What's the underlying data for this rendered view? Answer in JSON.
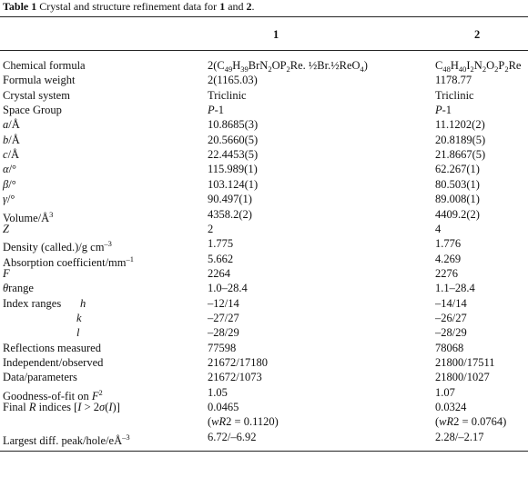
{
  "title": [
    "Table 1",
    {
      "text": " Crystal and structure refinement data for "
    },
    "1",
    {
      "text": " and "
    },
    "2",
    {
      "text": "."
    }
  ],
  "title_styles": [
    "b",
    null,
    "b",
    null,
    "b",
    null
  ],
  "header": [
    "1",
    "2"
  ],
  "rows": [
    {
      "label": "Chemical formula",
      "c1": [
        "2(C",
        {
          "text": "49",
          "style": "sub"
        },
        "H",
        {
          "text": "39",
          "style": "sub"
        },
        "BrN",
        {
          "text": "2",
          "style": "sub"
        },
        "OP",
        {
          "text": "2",
          "style": "sub"
        },
        "Re. ½Br.½ReO",
        {
          "text": "4",
          "style": "sub"
        },
        ")"
      ],
      "c2": [
        "C",
        {
          "text": "48",
          "style": "sub"
        },
        "H",
        {
          "text": "40",
          "style": "sub"
        },
        "I",
        {
          "text": "2",
          "style": "sub"
        },
        "N",
        {
          "text": "2",
          "style": "sub"
        },
        "O",
        {
          "text": "2",
          "style": "sub"
        },
        "P",
        {
          "text": "2",
          "style": "sub"
        },
        "Re"
      ]
    },
    {
      "label": "Formula weight",
      "c1": "2(1165.03)",
      "c2": "1178.77"
    },
    {
      "label": "Crystal system",
      "c1": "Triclinic",
      "c2": "Triclinic"
    },
    {
      "label": "Space Group",
      "c1": [
        {
          "text": "P",
          "style": "i"
        },
        "-1"
      ],
      "c2": [
        {
          "text": "P",
          "style": "i"
        },
        "-1"
      ]
    },
    {
      "label": [
        {
          "text": "a",
          "style": "i"
        },
        "/Å"
      ],
      "c1": "10.8685(3)",
      "c2": "11.1202(2)"
    },
    {
      "label": [
        {
          "text": "b",
          "style": "i"
        },
        "/Å"
      ],
      "c1": "20.5660(5)",
      "c2": "20.8189(5)"
    },
    {
      "label": [
        {
          "text": "c",
          "style": "i"
        },
        "/Å"
      ],
      "c1": "22.4453(5)",
      "c2": "21.8667(5)"
    },
    {
      "label": [
        {
          "text": "α",
          "style": "i"
        },
        "/°"
      ],
      "c1": "115.989(1)",
      "c2": "62.267(1)"
    },
    {
      "label": [
        {
          "text": "β",
          "style": "i"
        },
        "/°"
      ],
      "c1": "103.124(1)",
      "c2": "80.503(1)"
    },
    {
      "label": [
        {
          "text": "γ",
          "style": "i"
        },
        "/°"
      ],
      "c1": "90.497(1)",
      "c2": "89.008(1)"
    },
    {
      "label": [
        "Volume/Å",
        {
          "text": "3",
          "style": "sup"
        }
      ],
      "c1": "4358.2(2)",
      "c2": "4409.2(2)"
    },
    {
      "label": [
        {
          "text": "Z",
          "style": "i"
        }
      ],
      "c1": "2",
      "c2": "4"
    },
    {
      "label": [
        "Density (called.)/g cm",
        {
          "text": "–3",
          "style": "sup"
        }
      ],
      "c1": "1.775",
      "c2": "1.776"
    },
    {
      "label": [
        "Absorption coefficient/mm",
        {
          "text": "–1",
          "style": "sup"
        }
      ],
      "c1": "5.662",
      "c2": "4.269"
    },
    {
      "label": [
        {
          "text": "F",
          "style": "i"
        }
      ],
      "c1": "2264",
      "c2": "2276"
    },
    {
      "label": [
        {
          "text": "θ",
          "style": "i"
        },
        "range"
      ],
      "c1": "1.0–28.4",
      "c2": "1.1–28.4"
    },
    {
      "label": "Index ranges",
      "index": "h",
      "c1": "–12/14",
      "c2": "–14/14"
    },
    {
      "label": null,
      "index": "k",
      "c1": "–27/27",
      "c2": "–26/27"
    },
    {
      "label": null,
      "index": "l",
      "c1": "–28/29",
      "c2": "–28/29"
    },
    {
      "label": "Reflections measured",
      "c1": "77598",
      "c2": "78068"
    },
    {
      "label": "Independent/observed",
      "c1": "21672/17180",
      "c2": "21800/17511"
    },
    {
      "label": "Data/parameters",
      "c1": "21672/1073",
      "c2": "21800/1027"
    },
    {
      "label": [
        "Goodness-of-fit on ",
        {
          "text": "F",
          "style": "i"
        },
        {
          "text": "2",
          "style": "sup"
        }
      ],
      "c1": "1.05",
      "c2": "1.07"
    },
    {
      "label": [
        "Final ",
        {
          "text": "R",
          "style": "i"
        },
        " indices [",
        {
          "text": "I",
          "style": "i"
        },
        " > 2",
        {
          "text": "σ",
          "style": "i"
        },
        "(",
        {
          "text": "I",
          "style": "i"
        },
        ")]"
      ],
      "c1": "0.0465",
      "c2": "0.0324"
    },
    {
      "label": null,
      "c1": [
        "(",
        {
          "text": "wR",
          "style": "i"
        },
        "2 = 0.1120)"
      ],
      "c2": [
        "(",
        {
          "text": "wR",
          "style": "i"
        },
        "2 = 0.0764)"
      ]
    },
    {
      "label": [
        "Largest diff. peak/hole/eÅ",
        {
          "text": "–3",
          "style": "sup"
        }
      ],
      "c1": "6.72/–6.92",
      "c2": "2.28/–2.17"
    }
  ]
}
